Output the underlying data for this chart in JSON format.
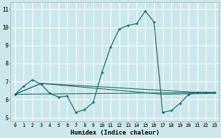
{
  "xlabel": "Humidex (Indice chaleur)",
  "background_color": "#cce8ec",
  "line_color": "#1a6b6b",
  "grid_color": "#ffffff",
  "xlim": [
    -0.5,
    23.5
  ],
  "ylim": [
    4.8,
    11.4
  ],
  "xticks": [
    0,
    1,
    2,
    3,
    4,
    5,
    6,
    7,
    8,
    9,
    10,
    11,
    12,
    13,
    14,
    15,
    16,
    17,
    18,
    19,
    20,
    21,
    22,
    23
  ],
  "yticks": [
    5,
    6,
    7,
    8,
    9,
    10,
    11
  ],
  "main_series": [
    6.3,
    6.75,
    7.1,
    6.85,
    6.35,
    6.15,
    6.2,
    5.3,
    5.45,
    5.85,
    7.5,
    8.9,
    9.9,
    10.1,
    10.2,
    10.9,
    10.3,
    5.3,
    5.4,
    5.8,
    6.3,
    6.4,
    6.4,
    6.4
  ],
  "trend_lines": [
    [
      [
        0,
        6.3
      ],
      [
        23,
        6.4
      ]
    ],
    [
      [
        0,
        6.3
      ],
      [
        3,
        6.9
      ],
      [
        23,
        6.35
      ]
    ],
    [
      [
        0,
        6.3
      ],
      [
        3,
        6.9
      ],
      [
        17,
        6.3
      ],
      [
        23,
        6.35
      ]
    ]
  ]
}
